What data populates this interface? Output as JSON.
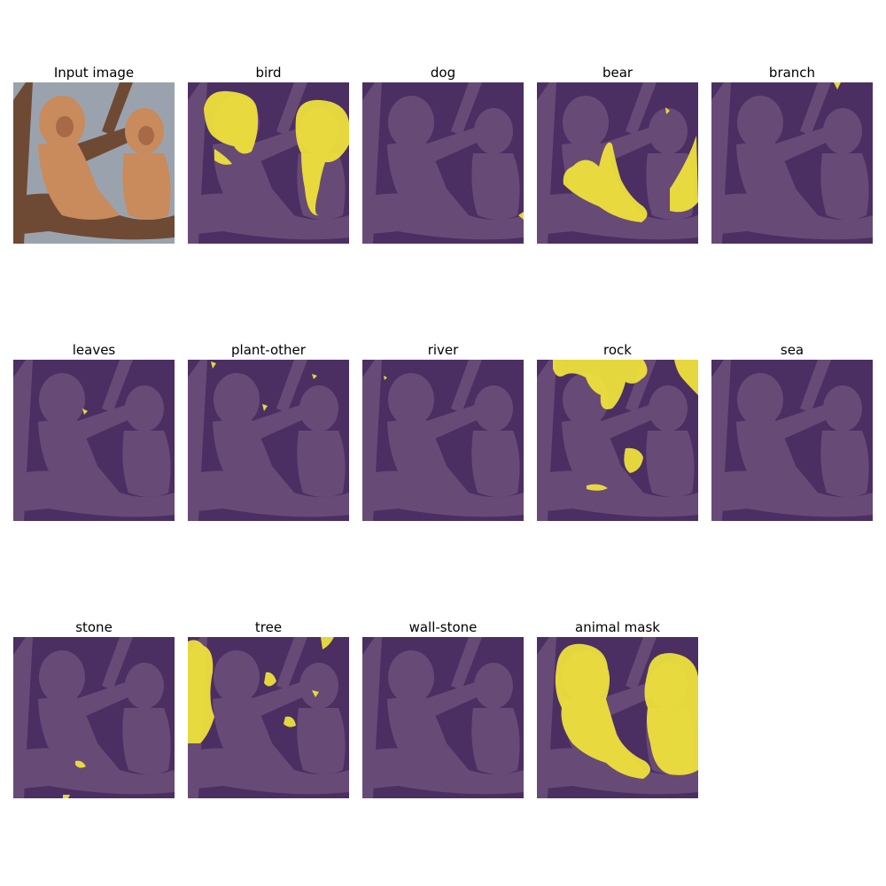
{
  "figure": {
    "panels": [
      {
        "title": "Input image",
        "kind": "photo"
      },
      {
        "title": "bird",
        "kind": "mask",
        "regions": "bird"
      },
      {
        "title": "dog",
        "kind": "mask",
        "regions": "dog"
      },
      {
        "title": "bear",
        "kind": "mask",
        "regions": "bear"
      },
      {
        "title": "branch",
        "kind": "mask",
        "regions": "branch"
      },
      {
        "title": "leaves",
        "kind": "mask",
        "regions": "leaves"
      },
      {
        "title": "plant-other",
        "kind": "mask",
        "regions": "plant-other"
      },
      {
        "title": "river",
        "kind": "mask",
        "regions": "river"
      },
      {
        "title": "rock",
        "kind": "mask",
        "regions": "rock"
      },
      {
        "title": "sea",
        "kind": "mask",
        "regions": "sea"
      },
      {
        "title": "stone",
        "kind": "mask",
        "regions": "stone"
      },
      {
        "title": "tree",
        "kind": "mask",
        "regions": "tree"
      },
      {
        "title": "wall-stone",
        "kind": "mask",
        "regions": "wall-stone"
      },
      {
        "title": "animal mask",
        "kind": "mask",
        "regions": "animal"
      }
    ]
  },
  "colors": {
    "mask_background": "#4b2f63",
    "mask_foreground": "#f2e63a",
    "photo_background": "#9aa3ad",
    "fur": "#c98a5c",
    "fur_dark": "#8f5637",
    "branch": "#6e4a35"
  }
}
